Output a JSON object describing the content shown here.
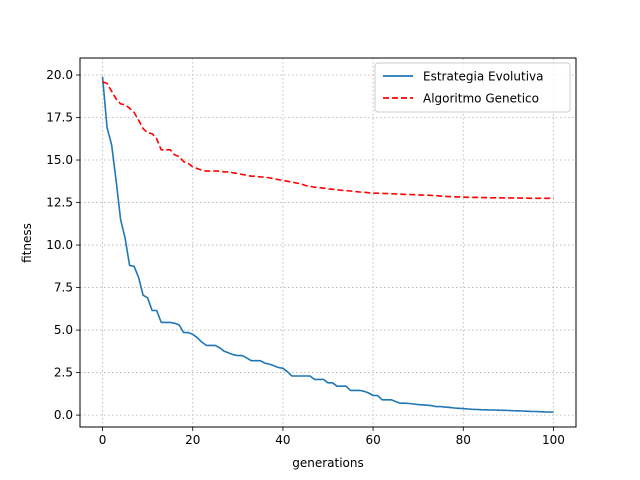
{
  "chart_data": {
    "type": "line",
    "title": "",
    "xlabel": "generations",
    "ylabel": "fitness",
    "xlim": [
      -5,
      105
    ],
    "ylim": [
      -0.7,
      21.0
    ],
    "xticks": [
      0,
      20,
      40,
      60,
      80,
      100
    ],
    "yticks": [
      0.0,
      2.5,
      5.0,
      7.5,
      10.0,
      12.5,
      15.0,
      17.5,
      20.0
    ],
    "xtick_labels": [
      "0",
      "20",
      "40",
      "60",
      "80",
      "100"
    ],
    "ytick_labels": [
      "0.0",
      "2.5",
      "5.0",
      "7.5",
      "10.0",
      "12.5",
      "15.0",
      "17.5",
      "20.0"
    ],
    "grid": true,
    "legend_position": "top-right",
    "series": [
      {
        "name": "Estrategia Evolutiva",
        "color": "#1f77b4",
        "style": "solid",
        "x": [
          0,
          1,
          2,
          3,
          4,
          5,
          6,
          7,
          8,
          9,
          10,
          11,
          12,
          13,
          14,
          15,
          16,
          17,
          18,
          19,
          20,
          21,
          22,
          23,
          24,
          25,
          26,
          27,
          28,
          29,
          30,
          31,
          32,
          33,
          34,
          35,
          36,
          37,
          38,
          39,
          40,
          41,
          42,
          43,
          44,
          45,
          46,
          47,
          48,
          49,
          50,
          51,
          52,
          53,
          54,
          55,
          56,
          57,
          58,
          59,
          60,
          61,
          62,
          63,
          64,
          65,
          66,
          67,
          68,
          69,
          70,
          71,
          72,
          73,
          74,
          75,
          76,
          77,
          78,
          79,
          80,
          81,
          82,
          83,
          84,
          85,
          86,
          87,
          88,
          89,
          90,
          91,
          92,
          93,
          94,
          95,
          96,
          97,
          98,
          99,
          100
        ],
        "y": [
          19.9,
          16.9,
          15.9,
          13.8,
          11.5,
          10.4,
          8.8,
          8.75,
          8.1,
          7.05,
          6.9,
          6.15,
          6.15,
          5.45,
          5.45,
          5.45,
          5.4,
          5.3,
          4.85,
          4.85,
          4.75,
          4.55,
          4.3,
          4.1,
          4.1,
          4.1,
          3.95,
          3.75,
          3.65,
          3.55,
          3.5,
          3.5,
          3.35,
          3.2,
          3.2,
          3.2,
          3.05,
          3.0,
          2.9,
          2.8,
          2.75,
          2.55,
          2.3,
          2.3,
          2.3,
          2.3,
          2.3,
          2.1,
          2.1,
          2.1,
          1.9,
          1.9,
          1.7,
          1.7,
          1.7,
          1.45,
          1.45,
          1.45,
          1.4,
          1.3,
          1.15,
          1.15,
          0.9,
          0.9,
          0.9,
          0.8,
          0.7,
          0.7,
          0.68,
          0.65,
          0.62,
          0.6,
          0.58,
          0.55,
          0.5,
          0.5,
          0.47,
          0.45,
          0.42,
          0.4,
          0.38,
          0.36,
          0.34,
          0.33,
          0.32,
          0.31,
          0.3,
          0.3,
          0.29,
          0.28,
          0.27,
          0.26,
          0.25,
          0.24,
          0.23,
          0.22,
          0.21,
          0.2,
          0.19,
          0.18,
          0.17
        ]
      },
      {
        "name": "Algoritmo Genetico",
        "color": "#ff0000",
        "style": "dashed",
        "x": [
          0,
          1,
          2,
          3,
          4,
          5,
          6,
          7,
          8,
          9,
          10,
          11,
          12,
          13,
          14,
          15,
          16,
          17,
          18,
          19,
          20,
          21,
          22,
          23,
          24,
          25,
          26,
          27,
          28,
          29,
          30,
          31,
          32,
          33,
          34,
          35,
          36,
          37,
          38,
          39,
          40,
          41,
          42,
          43,
          44,
          45,
          46,
          47,
          48,
          49,
          50,
          51,
          52,
          53,
          54,
          55,
          56,
          57,
          58,
          59,
          60,
          61,
          62,
          63,
          64,
          65,
          66,
          67,
          68,
          69,
          70,
          71,
          72,
          73,
          74,
          75,
          76,
          77,
          78,
          79,
          80,
          81,
          82,
          83,
          84,
          85,
          86,
          87,
          88,
          89,
          90,
          91,
          92,
          93,
          94,
          95,
          96,
          97,
          98,
          99,
          100
        ],
        "y": [
          19.6,
          19.5,
          19.05,
          18.6,
          18.3,
          18.25,
          18.05,
          17.8,
          17.35,
          16.85,
          16.6,
          16.55,
          16.25,
          15.6,
          15.6,
          15.6,
          15.3,
          15.2,
          14.9,
          14.8,
          14.6,
          14.5,
          14.4,
          14.35,
          14.35,
          14.35,
          14.35,
          14.3,
          14.3,
          14.25,
          14.2,
          14.15,
          14.1,
          14.05,
          14.05,
          14.0,
          14.0,
          13.95,
          13.9,
          13.85,
          13.8,
          13.75,
          13.7,
          13.65,
          13.6,
          13.5,
          13.45,
          13.4,
          13.38,
          13.35,
          13.3,
          13.28,
          13.25,
          13.22,
          13.2,
          13.18,
          13.15,
          13.12,
          13.1,
          13.08,
          13.05,
          13.05,
          13.04,
          13.03,
          13.02,
          13.0,
          12.99,
          12.98,
          12.97,
          12.96,
          12.95,
          12.94,
          12.93,
          12.92,
          12.9,
          12.88,
          12.86,
          12.85,
          12.84,
          12.83,
          12.82,
          12.81,
          12.8,
          12.8,
          12.79,
          12.79,
          12.78,
          12.78,
          12.78,
          12.77,
          12.77,
          12.77,
          12.76,
          12.76,
          12.76,
          12.75,
          12.75,
          12.75,
          12.75,
          12.75,
          12.75
        ]
      }
    ]
  }
}
